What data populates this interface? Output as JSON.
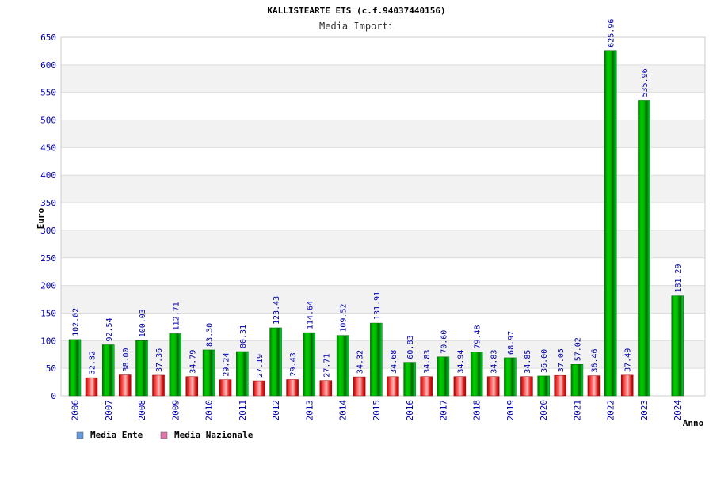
{
  "chart_data": {
    "type": "bar",
    "title": "KALLISTEARTE ETS (c.f.94037440156)",
    "subtitle": "Media Importi",
    "xlabel": "Anno",
    "ylabel": "Euro",
    "ylim": [
      0,
      650
    ],
    "yticks": [
      0,
      50,
      100,
      150,
      200,
      250,
      300,
      350,
      400,
      450,
      500,
      550,
      600,
      650
    ],
    "grid": true,
    "legend_position": "bottom-left",
    "categories": [
      "2006",
      "2007",
      "2008",
      "2009",
      "2010",
      "2011",
      "2012",
      "2013",
      "2014",
      "2015",
      "2016",
      "2017",
      "2018",
      "2019",
      "2020",
      "2021",
      "2022",
      "2023",
      "2024"
    ],
    "series": [
      {
        "name": "Media Ente",
        "legend_color": "#6699dd",
        "bar_color": "#00aa00",
        "values": [
          102.02,
          92.54,
          100.03,
          112.71,
          83.3,
          80.31,
          123.43,
          114.64,
          109.52,
          131.91,
          60.83,
          70.6,
          79.48,
          68.97,
          36.0,
          57.02,
          625.96,
          535.96,
          181.29
        ],
        "labels": [
          "102.02",
          "92.54",
          "100.03",
          "112.71",
          "83.30",
          "80.31",
          "123.43",
          "114.64",
          "109.52",
          "131.91",
          "60.83",
          "70.60",
          "79.48",
          "68.97",
          "36.00",
          "57.02",
          "625.96",
          "535.96",
          "181.29"
        ]
      },
      {
        "name": "Media Nazionale",
        "legend_color": "#dd77aa",
        "bar_color": "#dd2222",
        "values": [
          32.82,
          38.0,
          37.36,
          34.79,
          29.24,
          27.19,
          29.43,
          27.71,
          34.32,
          34.68,
          34.83,
          34.94,
          34.83,
          34.85,
          37.05,
          36.46,
          37.49,
          null,
          null
        ],
        "labels": [
          "32.82",
          "38.00",
          "37.36",
          "34.79",
          "29.24",
          "27.19",
          "29.43",
          "27.71",
          "34.32",
          "34.68",
          "34.83",
          "34.94",
          "34.83",
          "34.85",
          "37.05",
          "36.46",
          "37.49",
          "",
          ""
        ]
      }
    ]
  }
}
